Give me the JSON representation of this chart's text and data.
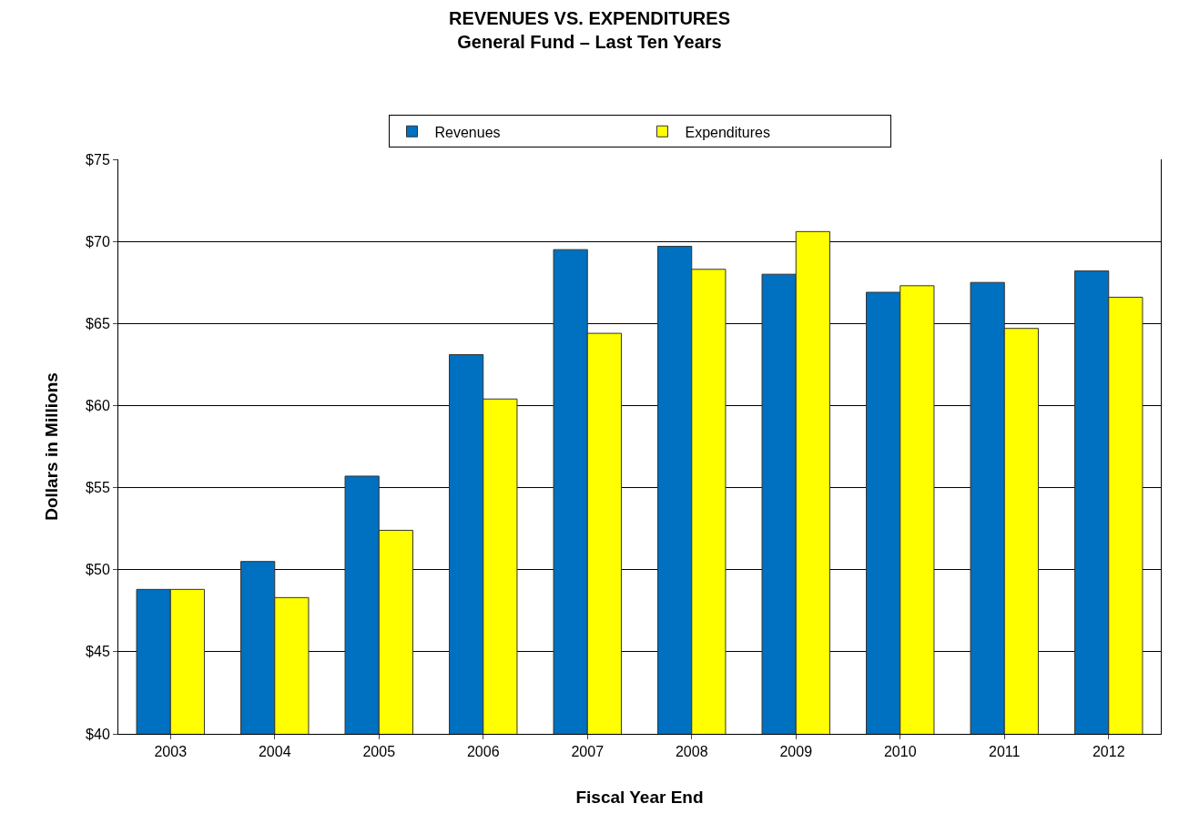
{
  "chart_data": {
    "type": "bar",
    "title": "REVENUES VS. EXPENDITURES",
    "subtitle": "General Fund – Last Ten Years",
    "xlabel": "Fiscal Year End",
    "ylabel": "Dollars in Millions",
    "categories": [
      "2003",
      "2004",
      "2005",
      "2006",
      "2007",
      "2008",
      "2009",
      "2010",
      "2011",
      "2012"
    ],
    "series": [
      {
        "name": "Revenues",
        "color": "#0070c0",
        "values": [
          48.8,
          50.5,
          55.7,
          63.1,
          69.5,
          69.7,
          68.0,
          66.9,
          67.5,
          68.2
        ]
      },
      {
        "name": "Expenditures",
        "color": "#ffff00",
        "values": [
          48.8,
          48.3,
          52.4,
          60.4,
          64.4,
          68.3,
          70.6,
          67.3,
          64.7,
          66.6
        ]
      }
    ],
    "ylim": [
      40,
      75
    ],
    "yticks": [
      {
        "value": 40,
        "label": "$40"
      },
      {
        "value": 45,
        "label": "$45"
      },
      {
        "value": 50,
        "label": "$50"
      },
      {
        "value": 55,
        "label": "$55"
      },
      {
        "value": 60,
        "label": "$60"
      },
      {
        "value": 65,
        "label": "$65"
      },
      {
        "value": 70,
        "label": "$70"
      },
      {
        "value": 75,
        "label": "$75"
      }
    ],
    "grid": "y",
    "legend": "top"
  }
}
